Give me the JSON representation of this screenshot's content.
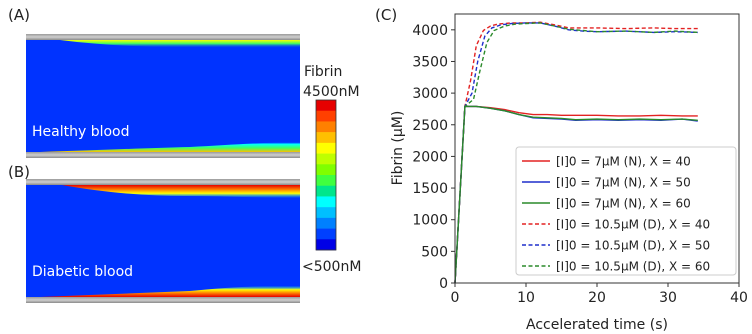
{
  "panels": {
    "a": {
      "tag": "(A)",
      "caption": "Healthy blood"
    },
    "b": {
      "tag": "(B)",
      "caption": "Diabetic blood"
    },
    "c": {
      "tag": "(C)"
    }
  },
  "colorbar": {
    "title": "Fibrin",
    "max_label": "4500nM",
    "min_label": "<500nM",
    "colors": [
      "#e60000",
      "#ff4000",
      "#ff8000",
      "#ffbf00",
      "#ffff00",
      "#bfff00",
      "#80ff00",
      "#40ff40",
      "#00e68c",
      "#00ffff",
      "#00bfff",
      "#0080ff",
      "#0040ff",
      "#0000e6"
    ]
  },
  "chart_data": {
    "type": "line",
    "xlabel": "Accelerated time (s)",
    "ylabel": "Fibrin (μM)",
    "xlim": [
      0,
      40
    ],
    "ylim": [
      0,
      4250
    ],
    "xticks": [
      0,
      10,
      20,
      30,
      40
    ],
    "yticks": [
      0,
      500,
      1000,
      1500,
      2000,
      2500,
      3000,
      3500,
      4000
    ],
    "grid": false,
    "legend_position": "lower-right",
    "series": [
      {
        "name": "[I]0 = 7μM (N), X = 40",
        "color": "#e32222",
        "dash": "solid",
        "x": [
          0,
          1.4,
          3,
          5,
          7,
          9,
          11,
          13,
          15,
          17,
          20,
          23,
          26,
          29,
          32,
          34.2
        ],
        "y": [
          0,
          2790,
          2790,
          2770,
          2740,
          2690,
          2660,
          2660,
          2650,
          2650,
          2650,
          2640,
          2640,
          2650,
          2640,
          2640
        ]
      },
      {
        "name": "[I]0 = 7μM (N), X = 50",
        "color": "#1f2fcc",
        "dash": "solid",
        "x": [
          0,
          1.4,
          3,
          5,
          7,
          9,
          11,
          13,
          15,
          17,
          20,
          23,
          26,
          29,
          32,
          34.2
        ],
        "y": [
          0,
          2790,
          2790,
          2760,
          2720,
          2660,
          2610,
          2600,
          2590,
          2570,
          2580,
          2570,
          2580,
          2570,
          2590,
          2560
        ]
      },
      {
        "name": "[I]0 = 7μM (N), X = 60",
        "color": "#2a8a2a",
        "dash": "solid",
        "x": [
          0,
          1.4,
          3,
          5,
          7,
          9,
          11,
          13,
          15,
          17,
          20,
          23,
          26,
          29,
          32,
          34.2
        ],
        "y": [
          0,
          2790,
          2790,
          2760,
          2720,
          2660,
          2620,
          2610,
          2600,
          2580,
          2590,
          2580,
          2590,
          2580,
          2590,
          2570
        ]
      },
      {
        "name": "[I]0 = 10.5μM (D), X = 40",
        "color": "#e32222",
        "dash": "dashed",
        "x": [
          0,
          1.4,
          2.2,
          3,
          4,
          5,
          6,
          8,
          10,
          12,
          14,
          16,
          18,
          20,
          24,
          28,
          31,
          34.2
        ],
        "y": [
          0,
          2790,
          3200,
          3750,
          3990,
          4060,
          4090,
          4110,
          4110,
          4120,
          4080,
          4030,
          4030,
          4030,
          4020,
          4030,
          4020,
          4020
        ]
      },
      {
        "name": "[I]0 = 10.5μM (D), X = 50",
        "color": "#1f2fcc",
        "dash": "dashed",
        "x": [
          0,
          1.4,
          2.4,
          3.2,
          4.2,
          5.2,
          6.5,
          8,
          10,
          12,
          14,
          16,
          18,
          20,
          24,
          28,
          31,
          34.2
        ],
        "y": [
          0,
          2790,
          3000,
          3500,
          3900,
          4030,
          4080,
          4100,
          4110,
          4110,
          4060,
          4000,
          3980,
          3970,
          3980,
          3960,
          3970,
          3960
        ]
      },
      {
        "name": "[I]0 = 10.5μM (D), X = 60",
        "color": "#2a8a2a",
        "dash": "dashed",
        "x": [
          0,
          1.4,
          2.6,
          3.5,
          4.5,
          5.5,
          7,
          8.5,
          10,
          12,
          14,
          16,
          18,
          20,
          24,
          28,
          31,
          34.2
        ],
        "y": [
          0,
          2790,
          2900,
          3350,
          3800,
          3990,
          4060,
          4090,
          4100,
          4110,
          4060,
          4010,
          3990,
          3970,
          3980,
          3960,
          3980,
          3960
        ]
      }
    ]
  }
}
